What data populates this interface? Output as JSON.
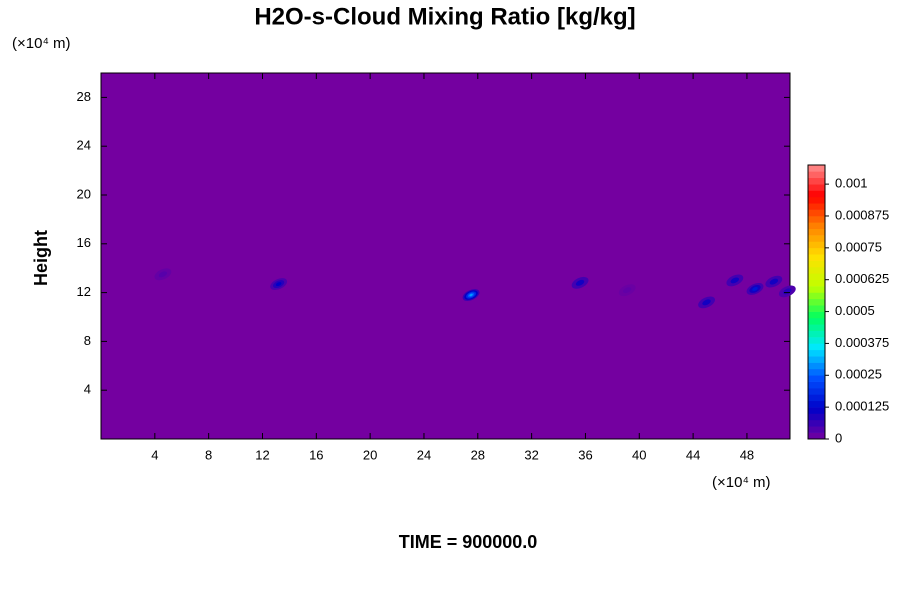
{
  "chart_data": {
    "type": "contour",
    "title": "H2O-s-Cloud Mixing Ratio [kg/kg]",
    "y_unit_label": "(×10⁴ m)",
    "x_unit_label": "(×10⁴ m)",
    "y_label": "Height",
    "footer": "TIME = 900000.0",
    "x": [
      4.6,
      13.2,
      27.5,
      35.6,
      39.1,
      45.0,
      47.1,
      48.6,
      50.0,
      51.0
    ],
    "y": [
      13.5,
      12.7,
      11.8,
      12.8,
      12.2,
      11.2,
      13.0,
      12.3,
      12.9,
      12.1
    ],
    "values": [
      3e-05,
      0.00012,
      0.0003,
      0.0001,
      2e-05,
      0.0001,
      0.0001,
      0.00015,
      0.0001,
      8e-05
    ],
    "xlim": [
      0,
      51.2
    ],
    "xticks": [
      4,
      8,
      12,
      16,
      20,
      24,
      28,
      32,
      36,
      40,
      44,
      48
    ],
    "ylim": [
      0,
      30
    ],
    "yticks": [
      4,
      8,
      12,
      16,
      20,
      24,
      28
    ],
    "colorbar_lim": [
      0,
      0.001075
    ],
    "colorbar_ticks": [
      0,
      0.000125,
      0.00025,
      0.000375,
      0.0005,
      0.000625,
      0.00075,
      0.000875,
      0.001
    ],
    "colormap": [
      "#7400a0",
      "#0000c8",
      "#0050ff",
      "#00e8ff",
      "#00ff60",
      "#c0ff00",
      "#ffe000",
      "#ff8000",
      "#ff0000",
      "#ff9090"
    ]
  }
}
